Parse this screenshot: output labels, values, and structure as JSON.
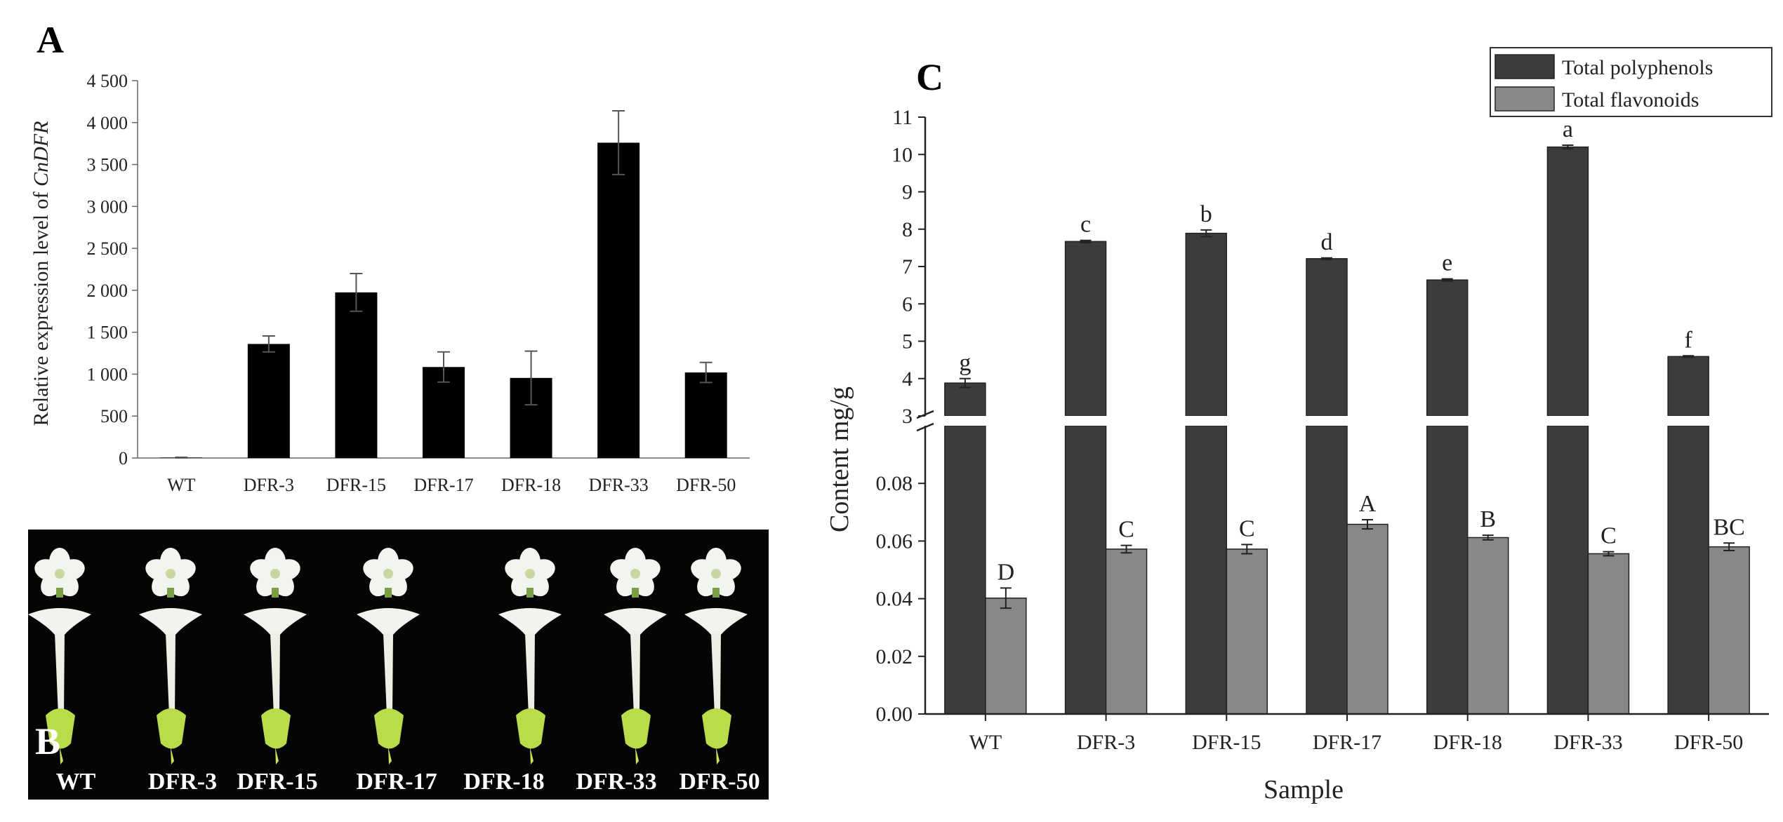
{
  "chart_data": [
    {
      "panel": "A",
      "type": "bar",
      "ylabel_prefix": "Relative expression level of ",
      "ylabel_gene": "CnDFR",
      "categories": [
        "WT",
        "DFR-3",
        "DFR-15",
        "DFR-17",
        "DFR-18",
        "DFR-33",
        "DFR-50"
      ],
      "values": [
        5,
        1360,
        1975,
        1085,
        955,
        3760,
        1020
      ],
      "errors": [
        3,
        95,
        225,
        180,
        320,
        380,
        120
      ],
      "ylim": [
        0,
        4500
      ],
      "yticks": [
        0,
        500,
        1000,
        1500,
        2000,
        2500,
        3000,
        3500,
        4000,
        4500
      ],
      "ytick_labels": [
        "0",
        "500",
        "1 000",
        "1 500",
        "2 000",
        "2 500",
        "3 000",
        "3 500",
        "4 000",
        "4 500"
      ],
      "bar_color": "#000000"
    },
    {
      "panel": "C",
      "type": "bar",
      "xlabel": "Sample",
      "ylabel": "Content mg/g",
      "categories": [
        "WT",
        "DFR-3",
        "DFR-15",
        "DFR-17",
        "DFR-18",
        "DFR-33",
        "DFR-50"
      ],
      "axis_break": true,
      "upper_ylim": [
        3,
        11
      ],
      "upper_yticks": [
        3,
        4,
        5,
        6,
        7,
        8,
        9,
        10,
        11
      ],
      "lower_ylim": [
        0,
        0.1
      ],
      "lower_yticks": [
        0.0,
        0.02,
        0.04,
        0.06,
        0.08
      ],
      "lower_ytick_labels": [
        "0.00",
        "0.02",
        "0.04",
        "0.06",
        "0.08"
      ],
      "series": [
        {
          "name": "Total polyphenols",
          "color": "#3c3c3c",
          "values": [
            3.88,
            7.67,
            7.89,
            7.21,
            6.64,
            10.2,
            4.59
          ],
          "errors": [
            0.12,
            0.03,
            0.09,
            0.02,
            0.03,
            0.05,
            0.02
          ],
          "letters": [
            "g",
            "c",
            "b",
            "d",
            "e",
            "a",
            "f"
          ]
        },
        {
          "name": "Total flavonoids",
          "color": "#888888",
          "values": [
            0.0402,
            0.0572,
            0.0572,
            0.0658,
            0.0612,
            0.0556,
            0.058
          ],
          "errors": [
            0.0035,
            0.0013,
            0.0016,
            0.0016,
            0.0008,
            0.0007,
            0.0013
          ],
          "letters": [
            "D",
            "C",
            "C",
            "A",
            "B",
            "C",
            "BC"
          ]
        }
      ]
    }
  ],
  "panel_labels": {
    "a": "A",
    "b": "B",
    "c": "C"
  },
  "photo": {
    "labels": [
      "WT",
      "DFR-3",
      "DFR-15",
      "DFR-17",
      "DFR-18",
      "DFR-33",
      "DFR-50"
    ]
  }
}
